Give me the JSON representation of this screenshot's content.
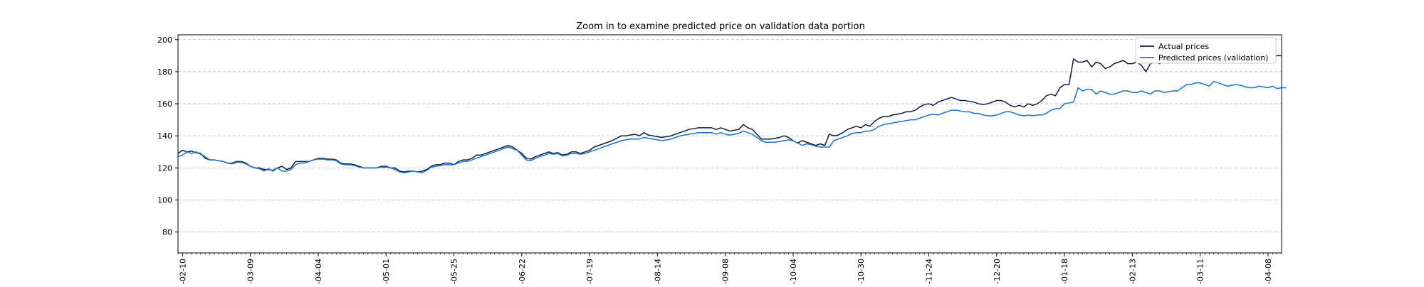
{
  "chart_data": {
    "type": "line",
    "title": "Zoom in to examine predicted price on validation data portion",
    "xlabel": "",
    "ylabel": "",
    "xlim": [
      0,
      244
    ],
    "ylim": [
      67,
      203
    ],
    "grid": {
      "y": true,
      "x": false,
      "style": "dashed"
    },
    "legend": {
      "position": "top-right"
    },
    "y_ticks": [
      80,
      100,
      120,
      140,
      160,
      180,
      200
    ],
    "x_ticks": [
      {
        "x": 1,
        "label": "-02-10"
      },
      {
        "x": 16,
        "label": "-03-09"
      },
      {
        "x": 31,
        "label": "-04-04"
      },
      {
        "x": 46,
        "label": "-05-01"
      },
      {
        "x": 61,
        "label": "-05-25"
      },
      {
        "x": 76,
        "label": "-06-22"
      },
      {
        "x": 91,
        "label": "-07-19"
      },
      {
        "x": 106,
        "label": "-08-14"
      },
      {
        "x": 121,
        "label": "-09-08"
      },
      {
        "x": 136,
        "label": "-10-04"
      },
      {
        "x": 151,
        "label": "-10-30"
      },
      {
        "x": 166,
        "label": "-11-24"
      },
      {
        "x": 181,
        "label": "-12-20"
      },
      {
        "x": 196,
        "label": "-01-18"
      },
      {
        "x": 211,
        "label": "-02-13"
      },
      {
        "x": 226,
        "label": "-03-11"
      },
      {
        "x": 241,
        "label": "-04-08"
      }
    ],
    "series": [
      {
        "name": "Actual prices",
        "color": "#0d1b3d",
        "values": [
          129,
          131,
          130,
          130.5,
          129.5,
          129,
          126,
          125,
          125,
          124.5,
          124,
          123,
          123,
          124,
          124,
          123,
          121,
          120,
          120,
          119,
          119,
          118.5,
          120,
          121,
          119,
          120,
          124,
          124,
          124,
          124,
          125,
          126,
          126,
          125.5,
          125.5,
          125,
          123,
          122.5,
          122.5,
          122,
          121,
          120,
          120,
          120,
          120,
          121,
          121,
          120,
          120,
          118,
          117.5,
          118,
          118,
          117.5,
          118,
          119,
          121,
          122,
          122,
          123,
          123,
          122,
          124,
          125,
          125,
          126,
          128,
          128,
          129,
          130,
          131,
          132,
          133,
          134,
          133,
          131,
          129,
          126,
          125.5,
          127,
          128,
          129,
          130,
          129,
          129.5,
          128,
          128.5,
          130,
          130,
          129,
          130,
          131,
          133,
          134,
          135,
          136,
          137,
          138.5,
          140,
          140,
          140.5,
          141,
          140,
          142,
          140.5,
          140,
          139.5,
          139,
          139.5,
          140,
          141,
          142,
          143,
          144,
          144.5,
          145,
          145,
          145,
          145,
          144,
          145,
          144,
          143,
          143.5,
          144,
          147,
          145,
          144,
          141,
          138,
          138,
          138,
          138.5,
          139,
          140,
          139,
          137,
          135.5,
          137,
          136,
          135,
          134,
          135,
          134,
          141,
          140,
          140.5,
          142,
          144,
          145,
          146,
          145,
          147,
          146,
          149,
          151,
          152,
          152,
          153,
          153.5,
          154,
          155,
          155,
          156,
          158,
          159.5,
          160,
          159,
          161,
          162,
          163,
          164,
          163,
          162,
          162,
          161.5,
          161,
          160,
          159.5,
          160,
          161,
          162,
          162,
          161,
          159,
          158,
          159,
          158,
          160,
          159,
          160,
          162,
          165,
          166,
          165,
          170,
          172,
          172,
          188,
          186,
          186,
          187,
          183,
          186,
          185,
          182,
          183,
          185,
          186,
          187,
          185,
          185,
          186,
          184,
          180,
          185,
          186,
          185,
          186,
          186,
          187,
          190,
          193,
          192,
          196,
          197,
          196,
          191,
          197,
          197,
          194,
          191,
          192,
          193,
          192,
          190,
          189,
          189,
          191,
          191,
          190,
          191,
          189,
          190,
          190
        ],
        "label_data": true
      },
      {
        "name": "Predicted prices (validation)",
        "color": "#1874d2",
        "values": [
          127,
          128,
          130,
          129,
          130,
          128.5,
          127,
          125,
          125,
          124.5,
          124,
          123,
          122.5,
          123.5,
          123.5,
          122.5,
          121,
          120,
          119.5,
          118,
          119.5,
          118,
          120,
          118,
          118,
          119,
          122,
          123,
          123,
          124,
          125,
          125.5,
          125.5,
          125,
          125,
          124.5,
          122.5,
          122,
          122,
          121.5,
          120.5,
          120,
          120,
          120,
          120,
          120.5,
          120.5,
          120,
          119,
          117.5,
          117,
          117.5,
          118,
          117.5,
          117,
          118.5,
          120.5,
          121,
          121.5,
          122,
          122,
          122,
          123,
          124,
          124,
          125,
          126,
          127,
          128,
          129,
          130,
          131,
          132,
          133,
          132,
          131,
          128,
          125,
          124.5,
          126,
          127,
          128,
          129,
          128.5,
          129,
          127.5,
          128,
          129,
          129,
          128.5,
          129,
          130,
          131,
          132,
          133,
          134,
          135,
          136,
          137,
          137.5,
          138,
          138,
          138,
          139,
          138.5,
          138,
          137.5,
          137,
          137.5,
          138,
          139,
          140,
          140.5,
          141,
          141.5,
          142,
          142,
          142,
          142,
          141,
          142,
          141,
          140.5,
          141,
          141.5,
          143,
          142,
          141,
          139,
          137,
          136,
          136,
          136,
          136.5,
          137,
          137.5,
          137,
          135.5,
          134,
          135,
          134.5,
          133.5,
          133,
          133,
          133,
          137,
          138,
          139,
          140,
          141.5,
          142,
          142,
          143,
          143,
          144,
          146,
          147,
          147.5,
          148,
          148.5,
          149,
          149.5,
          150,
          150,
          151,
          152,
          153,
          153.5,
          153,
          154,
          155,
          156,
          156,
          155.5,
          155,
          155,
          154,
          154,
          153,
          152.5,
          152.5,
          153,
          154,
          155,
          155,
          154,
          153,
          152.5,
          153,
          152.5,
          153,
          153,
          154,
          156,
          157,
          157,
          160,
          160.5,
          161,
          170,
          168,
          169,
          169,
          166,
          168,
          167,
          166,
          166,
          167,
          168,
          168,
          167,
          167,
          168,
          167,
          166,
          168,
          168,
          167,
          167.5,
          168,
          168,
          170,
          172,
          172,
          173,
          173,
          172,
          171,
          174,
          173,
          172,
          171,
          171.5,
          172,
          171.5,
          170.5,
          170,
          170,
          171,
          170.5,
          170,
          171,
          169.5,
          170,
          170
        ]
      }
    ]
  }
}
